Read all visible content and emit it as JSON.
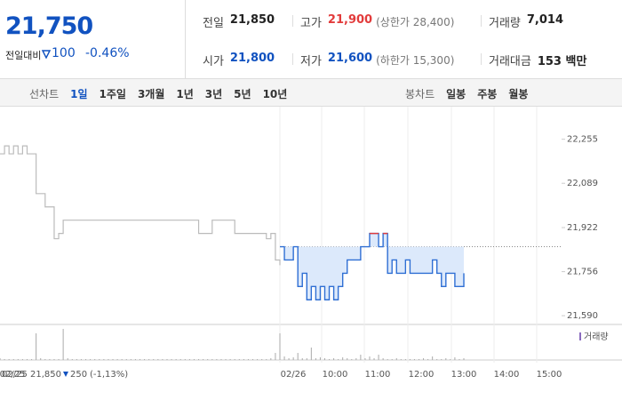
{
  "header": {
    "price": "21,750",
    "change_label": "전일대비",
    "change": "100",
    "change_pct": "-0.46%",
    "stats": [
      {
        "label": "전일",
        "value": "21,850"
      },
      {
        "label": "고가",
        "value": "21,900",
        "extra": "(상한가 28,400)"
      },
      {
        "label": "거래량",
        "value": "7,014"
      },
      {
        "label": "시가",
        "value": "21,800"
      },
      {
        "label": "저가",
        "value": "21,600",
        "extra": "(하한가 15,300)"
      },
      {
        "label": "거래대금",
        "value": "153 백만"
      }
    ]
  },
  "tabs": {
    "line_label": "선차트",
    "line_tabs": [
      "1일",
      "1주일",
      "3개월",
      "1년",
      "3년",
      "5년",
      "10년"
    ],
    "candle_label": "봉차트",
    "candle_tabs": [
      "일봉",
      "주봉",
      "월봉"
    ]
  },
  "chart_data": {
    "type": "line",
    "ylim": [
      21557,
      22361
    ],
    "yticks": [
      {
        "value": 22255,
        "label": "22,255"
      },
      {
        "value": 22089,
        "label": "22,089"
      },
      {
        "value": 21922,
        "label": "21,922"
      },
      {
        "value": 21756,
        "label": "21,756"
      },
      {
        "value": 21590,
        "label": "21,590"
      }
    ],
    "xtick_labels": [
      "02/25",
      "02/26",
      "10:00",
      "11:00",
      "12:00",
      "13:00",
      "14:00",
      "15:00"
    ],
    "baseline": 21850,
    "volume_label": "거래량",
    "series": [
      {
        "color": "#bbbbbb",
        "values": [
          22200,
          22230,
          22200,
          22230,
          22200,
          22230,
          22200,
          22200,
          22050,
          22050,
          22000,
          22000,
          21880,
          21900,
          21950,
          21950,
          21950,
          21950,
          21950,
          21950,
          21950,
          21950,
          21950,
          21950,
          21950,
          21950,
          21950,
          21950,
          21950,
          21950,
          21950,
          21950,
          21950,
          21950,
          21950,
          21950,
          21950,
          21950,
          21950,
          21950,
          21950,
          21950,
          21950,
          21950,
          21900,
          21900,
          21900,
          21950,
          21950,
          21950,
          21950,
          21950,
          21900,
          21900,
          21900,
          21900,
          21900,
          21900,
          21900,
          21880,
          21900,
          21800,
          21780
        ],
        "volume": [
          2,
          1,
          1,
          1,
          1,
          1,
          1,
          1,
          30,
          2,
          1,
          1,
          1,
          1,
          35,
          2,
          1,
          1,
          1,
          1,
          1,
          1,
          1,
          1,
          1,
          1,
          1,
          1,
          1,
          1,
          1,
          1,
          1,
          1,
          1,
          1,
          1,
          1,
          1,
          1,
          1,
          1,
          1,
          1,
          1,
          1,
          1,
          1,
          1,
          1,
          1,
          1,
          1,
          1,
          1,
          1,
          1,
          1,
          1,
          1,
          2,
          8,
          3
        ]
      },
      {
        "color": "#2f6fd4",
        "up_color": "#e23b3b",
        "values": [
          21850,
          21800,
          21800,
          21850,
          21700,
          21750,
          21650,
          21700,
          21650,
          21700,
          21650,
          21700,
          21650,
          21700,
          21750,
          21800,
          21800,
          21800,
          21850,
          21850,
          21900,
          21900,
          21850,
          21900,
          21750,
          21800,
          21750,
          21750,
          21800,
          21750,
          21750,
          21750,
          21750,
          21750,
          21800,
          21750,
          21700,
          21750,
          21750,
          21700,
          21700,
          21750
        ],
        "volume": [
          30,
          4,
          2,
          3,
          8,
          2,
          2,
          14,
          2,
          3,
          2,
          1,
          2,
          1,
          3,
          2,
          1,
          2,
          6,
          2,
          4,
          2,
          6,
          2,
          1,
          1,
          2,
          1,
          1,
          1,
          1,
          1,
          2,
          1,
          4,
          1,
          1,
          2,
          1,
          3,
          1,
          2
        ]
      }
    ],
    "info": {
      "date": "02/25",
      "price": "21,850",
      "change": "250",
      "pct": "(-1,13%)"
    }
  }
}
